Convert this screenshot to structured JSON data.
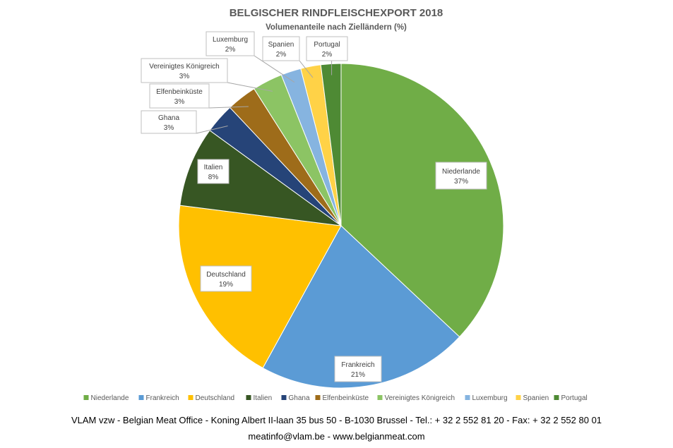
{
  "chart_data": {
    "type": "pie",
    "title": "BELGISCHER RINDFLEISCHEXPORT 2018",
    "subtitle": "Volumenanteile nach Zielländern (%)",
    "slices": [
      {
        "label": "Niederlande",
        "value": 37,
        "display": "37%",
        "color": "#70ad47"
      },
      {
        "label": "Frankreich",
        "value": 21,
        "display": "21%",
        "color": "#5b9bd5"
      },
      {
        "label": "Deutschland",
        "value": 19,
        "display": "19%",
        "color": "#ffc000"
      },
      {
        "label": "Italien",
        "value": 8,
        "display": "8%",
        "color": "#375623"
      },
      {
        "label": "Ghana",
        "value": 3,
        "display": "3%",
        "color": "#264478"
      },
      {
        "label": "Elfenbeinküste",
        "value": 3,
        "display": "3%",
        "color": "#9e6c1a"
      },
      {
        "label": "Vereinigtes Königreich",
        "value": 3,
        "display": "3%",
        "color": "#8cc464"
      },
      {
        "label": "Luxemburg",
        "value": 2,
        "display": "2%",
        "color": "#86b4e0"
      },
      {
        "label": "Spanien",
        "value": 2,
        "display": "2%",
        "color": "#ffd247"
      },
      {
        "label": "Portugal",
        "value": 2,
        "display": "2%",
        "color": "#4e8a34"
      }
    ],
    "legend_position": "bottom"
  },
  "footer": {
    "line1": "VLAM vzw - Belgian Meat Office - Koning Albert II-laan 35 bus 50 - B-1030 Brussel - Tel.: + 32 2 552 81 20 - Fax: + 32 2 552 80 01",
    "line2": "meatinfo@vlam.be - www.belgianmeat.com"
  }
}
